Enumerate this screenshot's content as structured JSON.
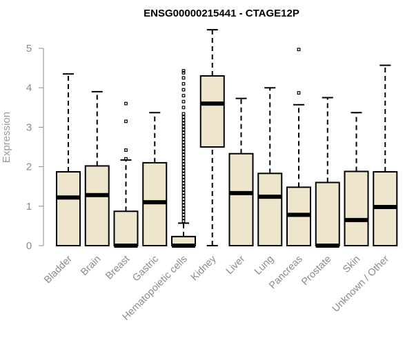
{
  "chart_data": {
    "type": "boxplot",
    "title": "ENSG00000215441 - CTAGE12P",
    "xlabel": "",
    "ylabel": "Expression",
    "ylim": [
      0,
      5.5
    ],
    "yticks": [
      0,
      1,
      2,
      3,
      4,
      5
    ],
    "box_fill": "#ede6cd",
    "categories": [
      "Bladder",
      "Brain",
      "Breast",
      "Gastric",
      "Hematopoietic cells",
      "Kidney",
      "Liver",
      "Lung",
      "Pancreas",
      "Prostate",
      "Skin",
      "Unknown / Other"
    ],
    "boxes": [
      {
        "q1": 0,
        "median": 1.22,
        "q3": 1.87,
        "whisker_low": 0,
        "whisker_high": 4.35,
        "outliers": []
      },
      {
        "q1": 0,
        "median": 1.28,
        "q3": 2.02,
        "whisker_low": 0,
        "whisker_high": 3.9,
        "outliers": []
      },
      {
        "q1": 0,
        "median": 0,
        "q3": 0.87,
        "whisker_low": 0,
        "whisker_high": 2.17,
        "outliers": [
          2.2,
          2.42,
          3.15,
          3.6
        ]
      },
      {
        "q1": 0,
        "median": 1.1,
        "q3": 2.1,
        "whisker_low": 0,
        "whisker_high": 3.37,
        "outliers": []
      },
      {
        "q1": 0,
        "median": 0,
        "q3": 0.23,
        "whisker_low": 0,
        "whisker_high": 0.57,
        "outliers": [
          0.62,
          0.7,
          0.78,
          0.86,
          0.94,
          1.02,
          1.1,
          1.18,
          1.26,
          1.34,
          1.42,
          1.5,
          1.58,
          1.66,
          1.74,
          1.82,
          1.9,
          1.98,
          2.06,
          2.14,
          2.22,
          2.3,
          2.38,
          2.46,
          2.54,
          2.62,
          2.7,
          2.78,
          2.86,
          2.94,
          3.02,
          3.1,
          3.18,
          3.26,
          3.34,
          3.5,
          3.65,
          3.8,
          3.95,
          4.1,
          4.25,
          4.38,
          4.43
        ]
      },
      {
        "q1": 2.5,
        "median": 3.6,
        "q3": 4.3,
        "whisker_low": 0,
        "whisker_high": 5.47,
        "outliers": []
      },
      {
        "q1": 0,
        "median": 1.33,
        "q3": 2.33,
        "whisker_low": 0,
        "whisker_high": 3.73,
        "outliers": []
      },
      {
        "q1": 0,
        "median": 1.24,
        "q3": 1.83,
        "whisker_low": 0,
        "whisker_high": 4.0,
        "outliers": []
      },
      {
        "q1": 0,
        "median": 0.78,
        "q3": 1.48,
        "whisker_low": 0,
        "whisker_high": 3.57,
        "outliers": [
          3.87,
          4.97
        ]
      },
      {
        "q1": 0,
        "median": 0,
        "q3": 1.6,
        "whisker_low": 0,
        "whisker_high": 3.75,
        "outliers": []
      },
      {
        "q1": 0,
        "median": 0.65,
        "q3": 1.88,
        "whisker_low": 0,
        "whisker_high": 3.37,
        "outliers": []
      },
      {
        "q1": 0,
        "median": 0.98,
        "q3": 1.87,
        "whisker_low": 0,
        "whisker_high": 4.57,
        "outliers": []
      }
    ]
  }
}
